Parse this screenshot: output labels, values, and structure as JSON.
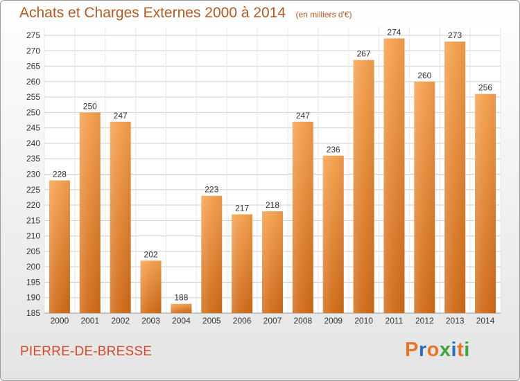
{
  "header": {
    "title": "Achats et Charges Externes 2000 à 2014",
    "unit": "(en milliers d'€)"
  },
  "footer": {
    "commune": "PIERRE-DE-BRESSE",
    "logo_text": "Proxiti",
    "logo_colors": [
      "#e8742a",
      "#2a6fbf",
      "#e8742a",
      "#3fa33f",
      "#2a6fbf",
      "#e8742a",
      "#3fa33f"
    ]
  },
  "chart_data": {
    "type": "bar",
    "categories": [
      "2000",
      "2001",
      "2002",
      "2003",
      "2004",
      "2005",
      "2006",
      "2007",
      "2008",
      "2009",
      "2010",
      "2011",
      "2012",
      "2013",
      "2014"
    ],
    "values": [
      228,
      250,
      247,
      202,
      188,
      223,
      217,
      218,
      247,
      236,
      267,
      274,
      260,
      273,
      256
    ],
    "title": "Achats et Charges Externes 2000 à 2014",
    "subtitle": "(en milliers d'€)",
    "xlabel": "",
    "ylabel": "",
    "ylim": [
      185,
      275
    ],
    "yticks": [
      185,
      190,
      195,
      200,
      205,
      210,
      215,
      220,
      225,
      230,
      235,
      240,
      245,
      250,
      255,
      260,
      265,
      270,
      275
    ],
    "grid": true,
    "legend": "none",
    "colors": {
      "bar_top": "#f5a04e",
      "bar_bottom": "#cf6a18",
      "grid": "#cccccc",
      "axis_text": "#333333",
      "value_text": "#333333"
    }
  }
}
